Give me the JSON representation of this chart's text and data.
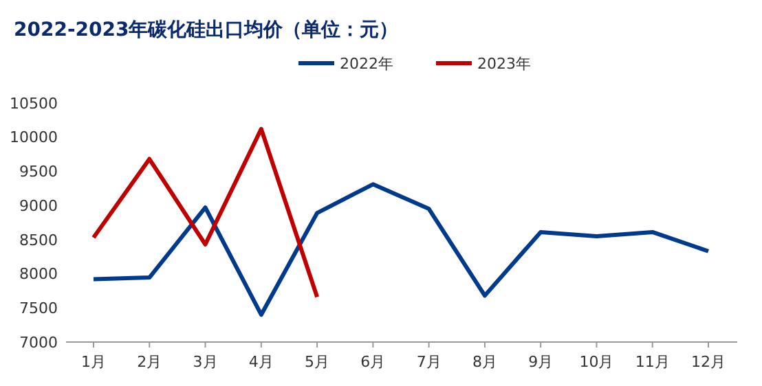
{
  "chart_data": {
    "type": "line",
    "title": "2022-2023年碳化硅出口均价（单位：元）",
    "categories": [
      "1月",
      "2月",
      "3月",
      "4月",
      "5月",
      "6月",
      "7月",
      "8月",
      "9月",
      "10月",
      "11月",
      "12月"
    ],
    "series": [
      {
        "name": "2022年",
        "color": "#003a8c",
        "values": [
          7920,
          7945,
          8970,
          7400,
          8890,
          9310,
          8950,
          7680,
          8610,
          8550,
          8610,
          8330
        ]
      },
      {
        "name": "2023年",
        "color": "#c00000",
        "values": [
          8530,
          9680,
          8430,
          10120,
          7660,
          null,
          null,
          null,
          null,
          null,
          null,
          null
        ]
      }
    ],
    "ylim": [
      7000,
      10500
    ],
    "yticks": [
      7000,
      7500,
      8000,
      8500,
      9000,
      9500,
      10000,
      10500
    ],
    "grid": false,
    "legend": "top",
    "marker": "none",
    "line_style": "solid"
  }
}
